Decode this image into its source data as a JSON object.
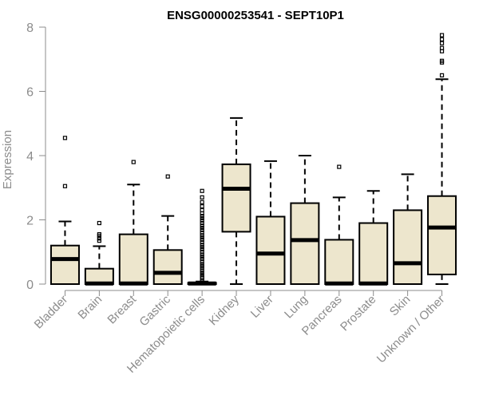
{
  "chart_data": {
    "type": "boxplot",
    "title": "ENSG00000253541 - SEPT10P1",
    "ylabel": "Expression",
    "xlabel": "",
    "ylim": [
      0,
      8
    ],
    "yticks": [
      0,
      2,
      4,
      6,
      8
    ],
    "box_fill": "#ede6cd",
    "grid": false,
    "categories": [
      "Bladder",
      "Brain",
      "Breast",
      "Gastric",
      "Hematopoietic cells",
      "Kidney",
      "Liver",
      "Lung",
      "Pancreas",
      "Prostate",
      "Skin",
      "Unknown / Other"
    ],
    "boxes": [
      {
        "label": "Bladder",
        "whisker_low": 0,
        "q1": 0,
        "median": 0.78,
        "q3": 1.2,
        "whisker_high": 1.95,
        "outliers": [
          3.05,
          4.55
        ]
      },
      {
        "label": "Brain",
        "whisker_low": 0,
        "q1": 0,
        "median": 0.02,
        "q3": 0.48,
        "whisker_high": 1.18,
        "outliers": [
          1.35,
          1.42,
          1.5,
          1.55,
          1.9
        ]
      },
      {
        "label": "Breast",
        "whisker_low": 0,
        "q1": 0,
        "median": 0.02,
        "q3": 1.55,
        "whisker_high": 3.1,
        "outliers": [
          3.8
        ]
      },
      {
        "label": "Gastric",
        "whisker_low": 0,
        "q1": 0,
        "median": 0.35,
        "q3": 1.06,
        "whisker_high": 2.12,
        "outliers": [
          3.35
        ]
      },
      {
        "label": "Hematopoietic cells",
        "whisker_low": 0,
        "q1": 0,
        "median": 0.02,
        "q3": 0.04,
        "whisker_high": 0.08,
        "outliers": [
          0.12,
          0.18,
          0.22,
          0.28,
          0.35,
          0.42,
          0.5,
          0.56,
          0.62,
          0.7,
          0.78,
          0.85,
          0.92,
          1.0,
          1.08,
          1.15,
          1.22,
          1.3,
          1.38,
          1.45,
          1.52,
          1.6,
          1.68,
          1.75,
          1.82,
          1.9,
          1.98,
          2.05,
          2.12,
          2.2,
          2.3,
          2.42,
          2.55,
          2.7,
          2.9
        ]
      },
      {
        "label": "Kidney",
        "whisker_low": 0,
        "q1": 1.63,
        "median": 2.97,
        "q3": 3.73,
        "whisker_high": 5.17,
        "outliers": []
      },
      {
        "label": "Liver",
        "whisker_low": 0,
        "q1": 0,
        "median": 0.95,
        "q3": 2.1,
        "whisker_high": 3.83,
        "outliers": []
      },
      {
        "label": "Lung",
        "whisker_low": 0,
        "q1": 0,
        "median": 1.37,
        "q3": 2.52,
        "whisker_high": 4.0,
        "outliers": []
      },
      {
        "label": "Pancreas",
        "whisker_low": 0,
        "q1": 0,
        "median": 0.02,
        "q3": 1.38,
        "whisker_high": 2.7,
        "outliers": [
          3.65
        ]
      },
      {
        "label": "Prostate",
        "whisker_low": 0,
        "q1": 0,
        "median": 0.02,
        "q3": 1.9,
        "whisker_high": 2.9,
        "outliers": []
      },
      {
        "label": "Skin",
        "whisker_low": 0,
        "q1": 0,
        "median": 0.65,
        "q3": 2.3,
        "whisker_high": 3.42,
        "outliers": []
      },
      {
        "label": "Unknown / Other",
        "whisker_low": 0,
        "q1": 0.3,
        "median": 1.76,
        "q3": 2.74,
        "whisker_high": 6.38,
        "outliers": [
          6.5,
          6.9,
          6.95,
          7.25,
          7.35,
          7.5,
          7.62,
          7.75
        ]
      }
    ]
  }
}
